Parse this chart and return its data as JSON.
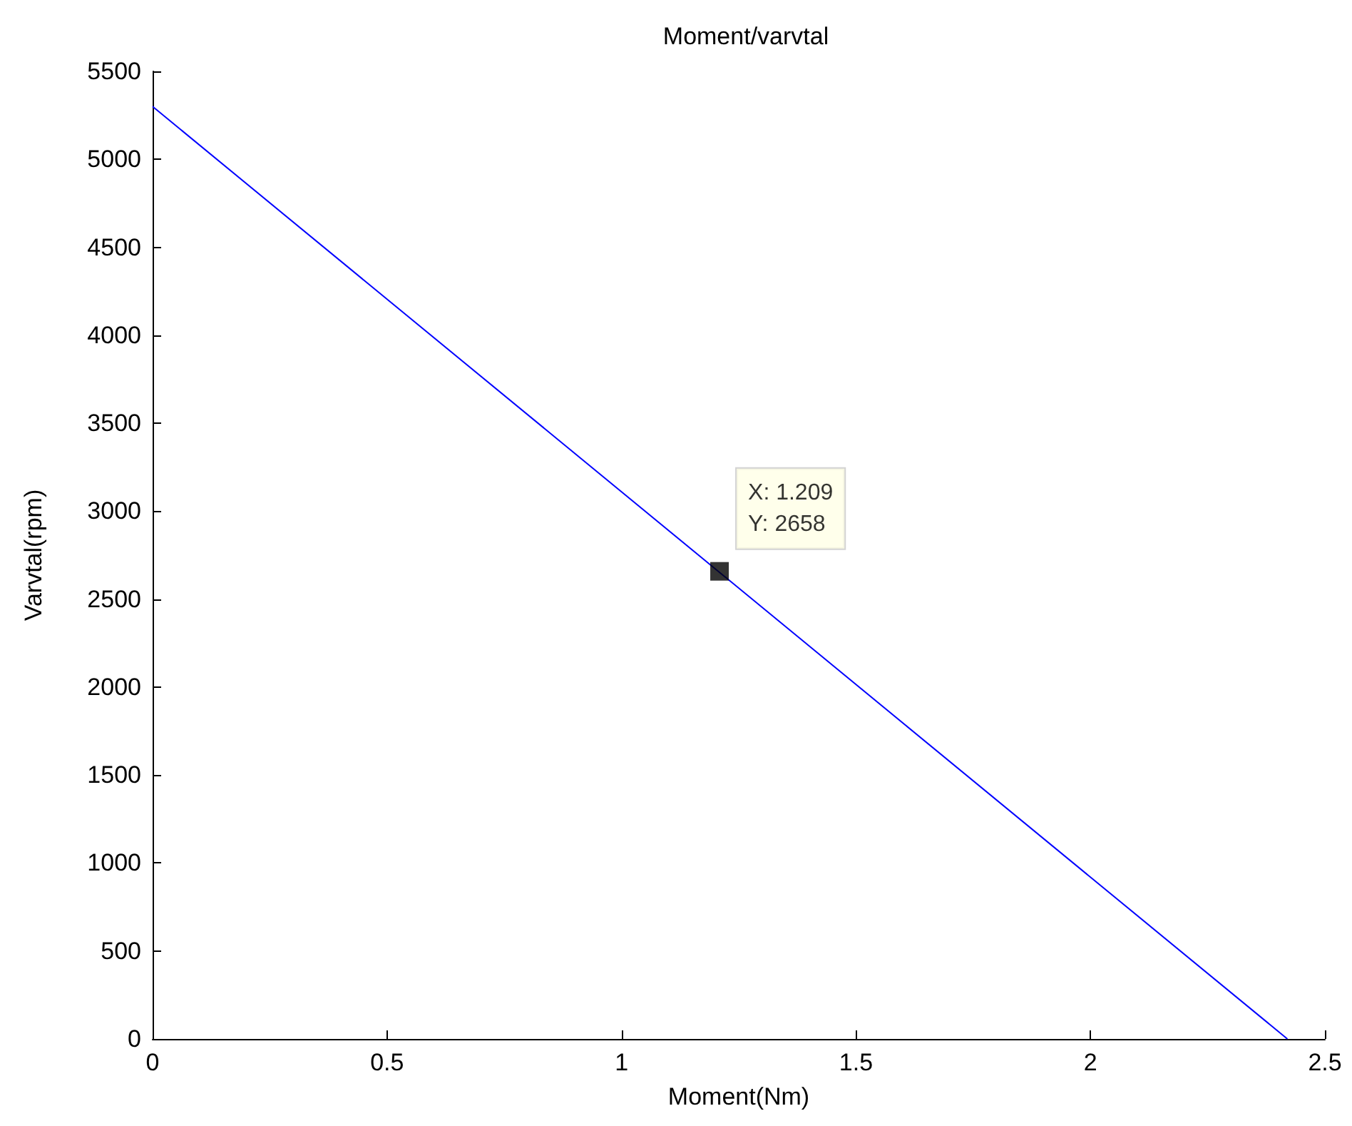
{
  "chart_data": {
    "type": "line",
    "title": "Moment/varvtal",
    "xlabel": "Moment(Nm)",
    "ylabel": "Varvtal(rpm)",
    "x": [
      0,
      2.42
    ],
    "series": [
      {
        "color": "#0000ff",
        "values": [
          5300,
          0
        ],
        "marker": "none",
        "line_style": "solid"
      },
      {
        "type": "scatter",
        "color": "#000000",
        "x": [
          1.209
        ],
        "values": [
          2658
        ],
        "marker": "square"
      }
    ],
    "xlim": [
      0,
      2.5
    ],
    "xticks": [
      0,
      0.5,
      1,
      1.5,
      2,
      2.5
    ],
    "ylim": [
      0,
      5500
    ],
    "yticks": [
      0,
      500,
      1000,
      1500,
      2000,
      2500,
      3000,
      3500,
      4000,
      4500,
      5000,
      5500
    ],
    "grid": false,
    "annotations": [
      {
        "text": "X: 1.209\nY: 2658",
        "x": 1.209,
        "y": 2658
      }
    ]
  }
}
